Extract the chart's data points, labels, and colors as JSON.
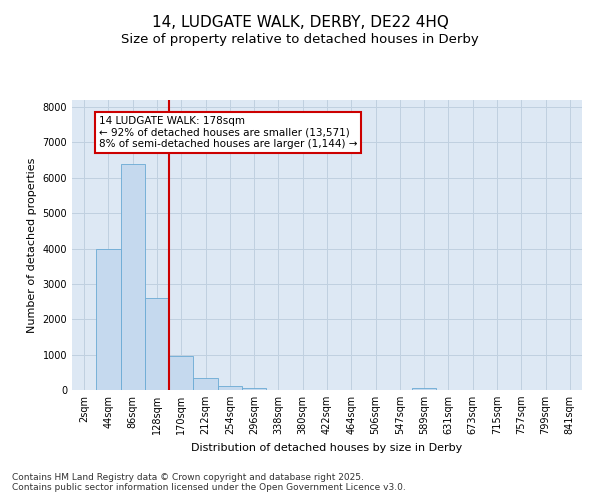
{
  "title_line1": "14, LUDGATE WALK, DERBY, DE22 4HQ",
  "title_line2": "Size of property relative to detached houses in Derby",
  "xlabel": "Distribution of detached houses by size in Derby",
  "ylabel": "Number of detached properties",
  "bar_labels": [
    "2sqm",
    "44sqm",
    "86sqm",
    "128sqm",
    "170sqm",
    "212sqm",
    "254sqm",
    "296sqm",
    "338sqm",
    "380sqm",
    "422sqm",
    "464sqm",
    "506sqm",
    "547sqm",
    "589sqm",
    "631sqm",
    "673sqm",
    "715sqm",
    "757sqm",
    "799sqm",
    "841sqm"
  ],
  "bar_values": [
    5,
    4000,
    6400,
    2600,
    950,
    350,
    120,
    50,
    10,
    0,
    0,
    0,
    0,
    0,
    50,
    0,
    0,
    0,
    0,
    0,
    0
  ],
  "bar_color": "#c5d9ee",
  "bar_edge_color": "#6aaad4",
  "vline_x_pos": 3.5,
  "vline_color": "#cc0000",
  "annotation_text": "14 LUDGATE WALK: 178sqm\n← 92% of detached houses are smaller (13,571)\n8% of semi-detached houses are larger (1,144) →",
  "annotation_box_color": "white",
  "annotation_box_edge": "#cc0000",
  "ylim": [
    0,
    8200
  ],
  "yticks": [
    0,
    1000,
    2000,
    3000,
    4000,
    5000,
    6000,
    7000,
    8000
  ],
  "grid_color": "#c0d0e0",
  "background_color": "#dde8f4",
  "footer_text": "Contains HM Land Registry data © Crown copyright and database right 2025.\nContains public sector information licensed under the Open Government Licence v3.0.",
  "title_fontsize": 11,
  "subtitle_fontsize": 9.5,
  "label_fontsize": 8,
  "tick_fontsize": 7,
  "footer_fontsize": 6.5,
  "annotation_fontsize": 7.5
}
